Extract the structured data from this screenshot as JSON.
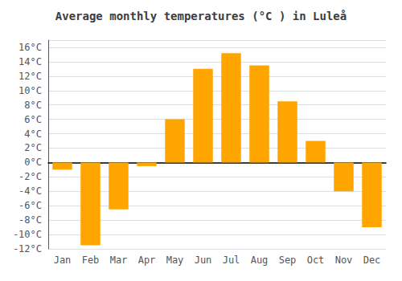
{
  "chart_data": {
    "type": "bar",
    "title": "Average monthly temperatures (°C ) in Luleå",
    "categories": [
      "Jan",
      "Feb",
      "Mar",
      "Apr",
      "May",
      "Jun",
      "Jul",
      "Aug",
      "Sep",
      "Oct",
      "Nov",
      "Dec"
    ],
    "values": [
      -1,
      -11.5,
      -6.5,
      -0.5,
      6,
      13,
      15.2,
      13.5,
      8.5,
      3,
      -4,
      -9
    ],
    "color": "#FFA500",
    "ylim": [
      -12,
      17
    ],
    "yticks": [
      {
        "value": -12,
        "label": "-12°C"
      },
      {
        "value": -10,
        "label": "-10°C"
      },
      {
        "value": -8,
        "label": "-8°C"
      },
      {
        "value": -6,
        "label": "-6°C"
      },
      {
        "value": -4,
        "label": "-4°C"
      },
      {
        "value": -2,
        "label": "-2°C"
      },
      {
        "value": 0,
        "label": "0°C"
      },
      {
        "value": 2,
        "label": "2°C"
      },
      {
        "value": 4,
        "label": "4°C"
      },
      {
        "value": 6,
        "label": "6°C"
      },
      {
        "value": 8,
        "label": "8°C"
      },
      {
        "value": 10,
        "label": "10°C"
      },
      {
        "value": 12,
        "label": "12°C"
      },
      {
        "value": 14,
        "label": "14°C"
      },
      {
        "value": 16,
        "label": "16°C"
      }
    ],
    "grid": true
  }
}
